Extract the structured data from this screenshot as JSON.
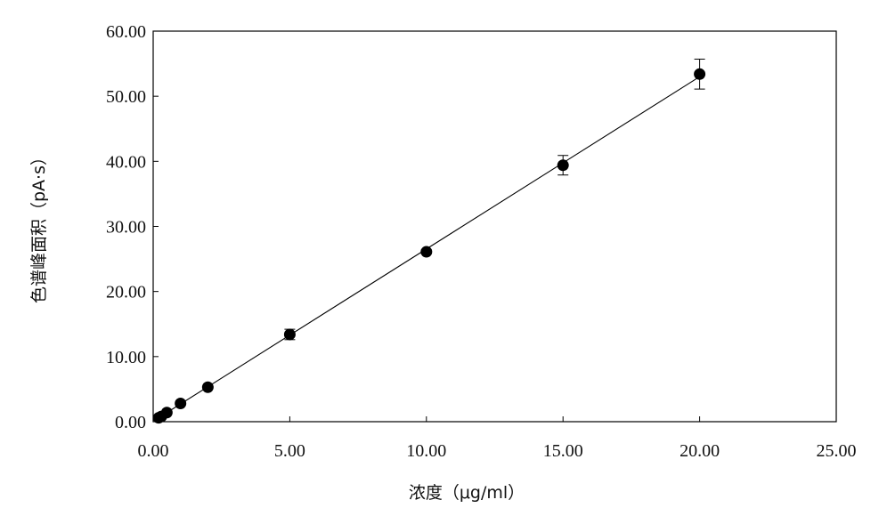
{
  "chart_data": {
    "type": "scatter",
    "title": "",
    "xlabel": "浓度（μg/ml）",
    "ylabel": "色谱峰面积（pA·s）",
    "xlim": [
      0,
      25
    ],
    "ylim": [
      0,
      60
    ],
    "x_ticks": [
      "0.00",
      "5.00",
      "10.00",
      "15.00",
      "20.00",
      "25.00"
    ],
    "y_ticks": [
      "0.00",
      "10.00",
      "20.00",
      "30.00",
      "40.00",
      "50.00",
      "60.00"
    ],
    "grid": false,
    "legend": "none",
    "marker_color": "#000000",
    "points": [
      {
        "x": 0.2,
        "y": 0.6,
        "err": 0
      },
      {
        "x": 0.3,
        "y": 0.8,
        "err": 0
      },
      {
        "x": 0.5,
        "y": 1.4,
        "err": 0
      },
      {
        "x": 1.0,
        "y": 2.8,
        "err": 0
      },
      {
        "x": 2.0,
        "y": 5.3,
        "err": 0
      },
      {
        "x": 5.0,
        "y": 13.4,
        "err": 0.8
      },
      {
        "x": 10.0,
        "y": 26.1,
        "err": 0.3
      },
      {
        "x": 15.0,
        "y": 39.4,
        "err": 1.5
      },
      {
        "x": 20.0,
        "y": 53.4,
        "err": 2.3
      }
    ],
    "fit_line": {
      "x": [
        0.2,
        20.0
      ],
      "y": [
        0.6,
        53.0
      ]
    }
  }
}
